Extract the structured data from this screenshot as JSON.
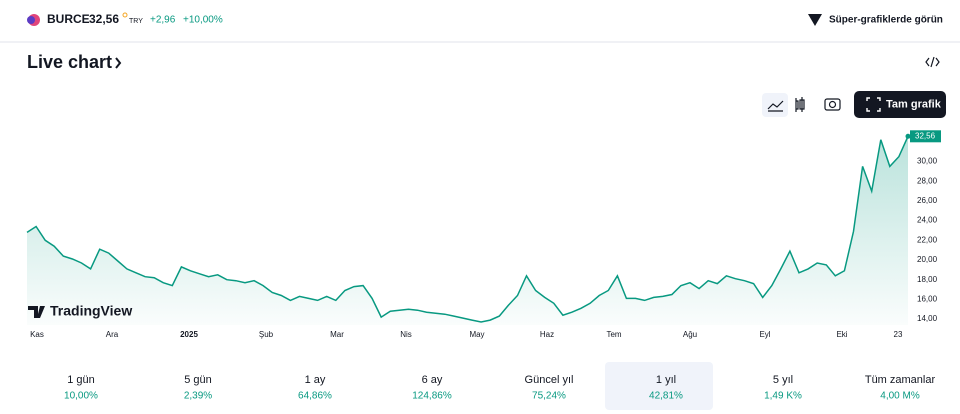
{
  "header": {
    "symbol": "BURCE",
    "price": "32,56",
    "currency": "TRY",
    "change": "+2,96",
    "change_pct": "+10,00%",
    "super_link": "Süper-grafiklerde görün"
  },
  "title": "Live chart",
  "full_chart_button": "Tam grafik",
  "logo": "TradingView",
  "chart_data": {
    "type": "line",
    "x_labels": [
      "Kas",
      "Ara",
      "2025",
      "Şub",
      "Mar",
      "Nis",
      "May",
      "Haz",
      "Tem",
      "Ağu",
      "Eyl",
      "Eki",
      "23"
    ],
    "series": [
      {
        "color": "#089981",
        "values": [
          22.8,
          23.4,
          22,
          21.4,
          20.4,
          20.1,
          19.7,
          19.1,
          21.1,
          20.7,
          19.9,
          19.1,
          18.7,
          18.3,
          18.2,
          17.7,
          17.4,
          19.3,
          18.9,
          18.6,
          18.3,
          18.5,
          18,
          17.9,
          17.7,
          17.9,
          17.4,
          16.7,
          16.4,
          15.9,
          16.3,
          16.1,
          15.9,
          16.3,
          15.9,
          16.9,
          17.3,
          17.4,
          16.1,
          14.2,
          14.8,
          14.9,
          15,
          14.9,
          14.7,
          14.6,
          14.5,
          14.3,
          14.1,
          13.9,
          13.7,
          13.9,
          14.3,
          15.4,
          16.4,
          18.4,
          16.9,
          16.2,
          15.6,
          14.4,
          14.7,
          15.1,
          15.6,
          16.4,
          16.9,
          18.4,
          16.1,
          16.1,
          15.9,
          16.2,
          16.3,
          16.5,
          17.4,
          17.7,
          17.1,
          17.9,
          17.6,
          18.4,
          18.1,
          17.9,
          17.6,
          16.2,
          17.4,
          19.1,
          20.9,
          18.7,
          19.1,
          19.7,
          19.5,
          18.4,
          18.9,
          22.9,
          29.5,
          27,
          32.2,
          29.5,
          30.5,
          32.56
        ]
      }
    ],
    "last_price_label": "32,56",
    "ylim": [
      13.4,
      33.2
    ],
    "yticks": [
      {
        "value": 14,
        "label": "14,00"
      },
      {
        "value": 16,
        "label": "16,00"
      },
      {
        "value": 18,
        "label": "18,00"
      },
      {
        "value": 20,
        "label": "20,00"
      },
      {
        "value": 22,
        "label": "22,00"
      },
      {
        "value": 24,
        "label": "24,00"
      },
      {
        "value": 26,
        "label": "26,00"
      },
      {
        "value": 28,
        "label": "28,00"
      },
      {
        "value": 30,
        "label": "30,00"
      }
    ]
  },
  "periods": [
    {
      "label": "1 gün",
      "value": "10,00%"
    },
    {
      "label": "5 gün",
      "value": "2,39%"
    },
    {
      "label": "1 ay",
      "value": "64,86%"
    },
    {
      "label": "6 ay",
      "value": "124,86%"
    },
    {
      "label": "Güncel yıl",
      "value": "75,24%"
    },
    {
      "label": "1 yıl",
      "value": "42,81%"
    },
    {
      "label": "5 yıl",
      "value": "1,49 K%"
    },
    {
      "label": "Tüm zamanlar",
      "value": "4,00 M%"
    }
  ]
}
